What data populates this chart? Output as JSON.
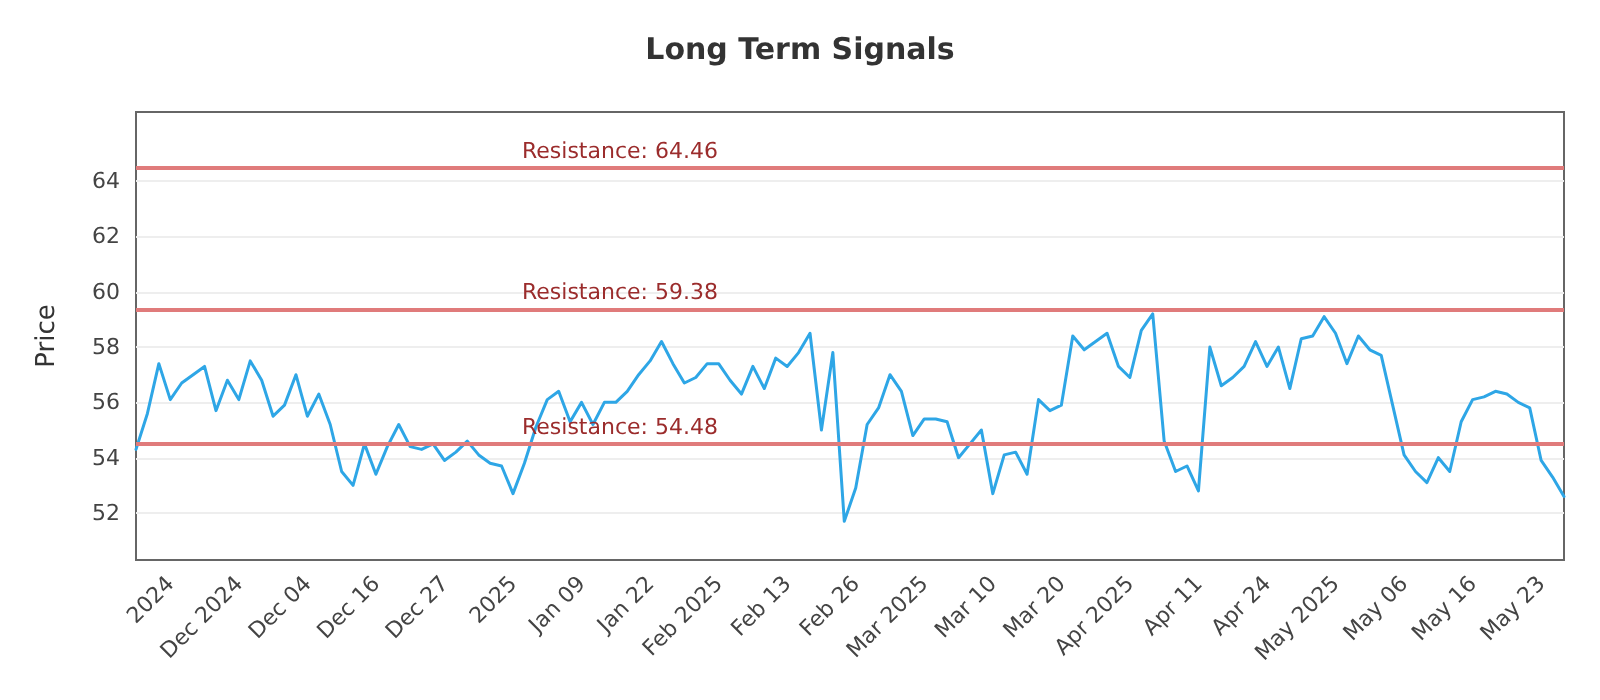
{
  "chart_data": {
    "type": "line",
    "title": "Long Term Signals",
    "ylabel": "Price",
    "categories": [
      null,
      null,
      null,
      "2024",
      null,
      null,
      null,
      null,
      null,
      "Dec 2024",
      null,
      null,
      null,
      null,
      null,
      "Dec 04",
      null,
      null,
      null,
      null,
      null,
      "Dec 16",
      null,
      null,
      null,
      null,
      null,
      "Dec 27",
      null,
      null,
      null,
      null,
      null,
      "2025",
      null,
      null,
      null,
      null,
      null,
      "Jan 09",
      null,
      null,
      null,
      null,
      null,
      "Jan 22",
      null,
      null,
      null,
      null,
      null,
      "Feb 2025",
      null,
      null,
      null,
      null,
      null,
      "Feb 13",
      null,
      null,
      null,
      null,
      null,
      "Feb 26",
      null,
      null,
      null,
      null,
      null,
      "Mar 2025",
      null,
      null,
      null,
      null,
      null,
      "Mar 10",
      null,
      null,
      null,
      null,
      null,
      "Mar 20",
      null,
      null,
      null,
      null,
      null,
      "Apr 2025",
      null,
      null,
      null,
      null,
      null,
      "Apr 11",
      null,
      null,
      null,
      null,
      null,
      "Apr 24",
      null,
      null,
      null,
      null,
      null,
      "May 2025",
      null,
      null,
      null,
      null,
      null,
      "May 06",
      null,
      null,
      null,
      null,
      null,
      "May 16",
      null,
      null,
      null,
      null,
      null,
      "May 23",
      null,
      null
    ],
    "series": [
      {
        "color": "#2ea6e6",
        "values": [
          54.3,
          55.6,
          57.4,
          56.1,
          56.7,
          57.0,
          57.3,
          55.7,
          56.8,
          56.1,
          57.5,
          56.8,
          55.5,
          55.9,
          57.0,
          55.5,
          56.3,
          55.2,
          53.5,
          53.0,
          54.5,
          53.4,
          54.4,
          55.2,
          54.4,
          54.3,
          54.5,
          53.9,
          54.2,
          54.6,
          54.1,
          53.8,
          53.7,
          52.7,
          53.8,
          55.1,
          56.1,
          56.4,
          55.3,
          56.0,
          55.2,
          56.0,
          56.0,
          56.4,
          57.0,
          57.5,
          58.2,
          57.4,
          56.7,
          56.9,
          57.4,
          57.4,
          56.8,
          56.3,
          57.3,
          56.5,
          57.6,
          57.3,
          57.8,
          58.5,
          55.0,
          57.8,
          51.7,
          52.9,
          55.2,
          55.8,
          57.0,
          56.4,
          54.8,
          55.4,
          55.4,
          55.3,
          54.0,
          54.5,
          55.0,
          52.7,
          54.1,
          54.2,
          53.4,
          56.1,
          55.7,
          55.9,
          58.4,
          57.9,
          58.2,
          58.5,
          57.3,
          56.9,
          58.6,
          59.2,
          54.6,
          53.5,
          53.7,
          52.8,
          58.0,
          56.6,
          56.9,
          57.3,
          58.2,
          57.3,
          58.0,
          56.5,
          58.3,
          58.4,
          59.1,
          58.5,
          57.4,
          58.4,
          57.9,
          57.7,
          55.9,
          54.1,
          53.5,
          53.1,
          54.0,
          53.5,
          55.3,
          56.1,
          56.2,
          56.4,
          56.3,
          56.0,
          55.8,
          53.9,
          53.3,
          52.6
        ]
      }
    ],
    "ylim": [
      50.3,
      66.5
    ],
    "yticks": [
      52,
      54,
      56,
      58,
      60,
      62,
      64
    ],
    "grid": "y",
    "marker": "none",
    "line_style": "solid",
    "ref_lines": [
      {
        "axis": "y",
        "value": 64.46,
        "label": "Resistance: 64.46",
        "color": "#e07b7b"
      },
      {
        "axis": "y",
        "value": 59.38,
        "label": "Resistance: 59.38",
        "color": "#e07b7b"
      },
      {
        "axis": "y",
        "value": 54.48,
        "label": "Resistance: 54.48",
        "color": "#e07b7b"
      }
    ]
  }
}
